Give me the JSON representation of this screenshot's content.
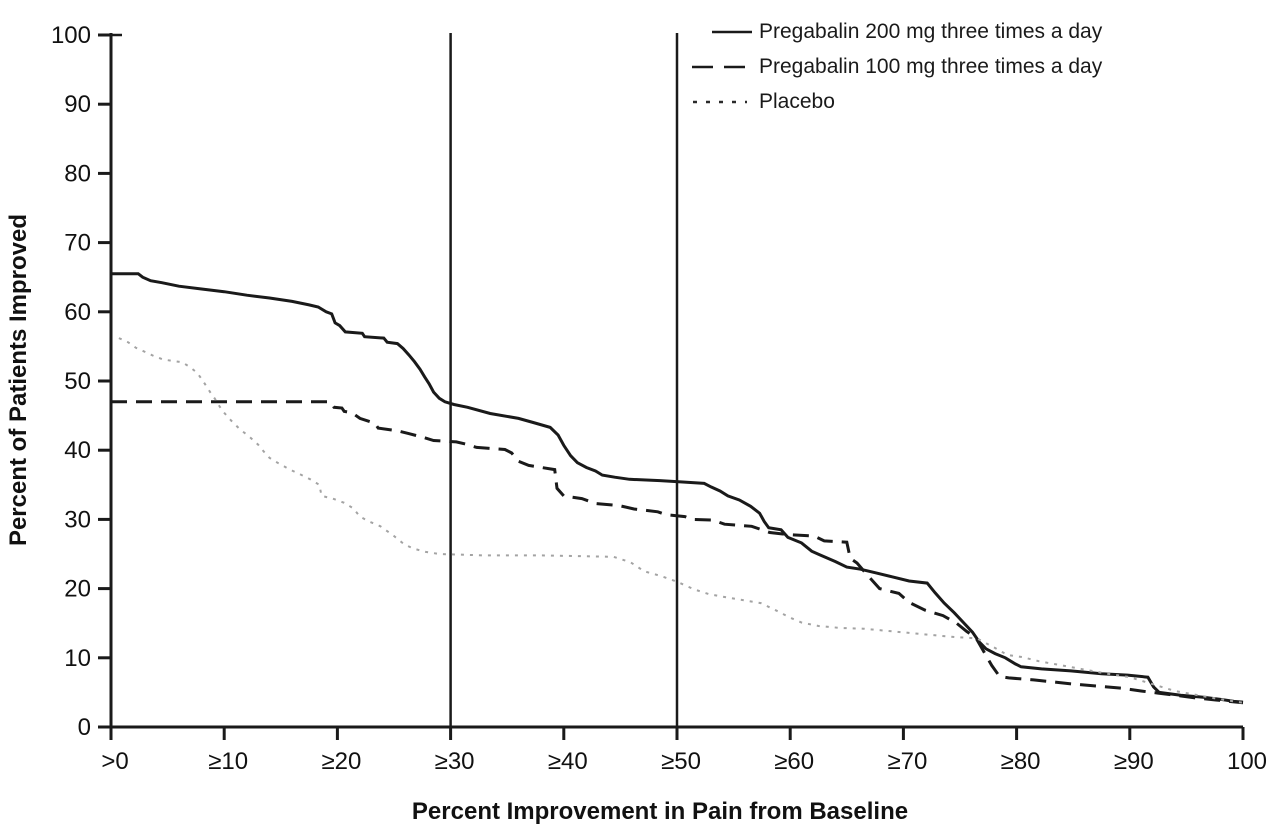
{
  "figure": {
    "background": "#ffffff",
    "axis_color": "#1a1a1a"
  },
  "chart_data": {
    "type": "line",
    "subtype": "step-survival-curves",
    "title": "",
    "xlabel": "Percent Improvement in Pain from Baseline",
    "ylabel": "Percent of Patients Improved",
    "xlim": [
      0,
      100
    ],
    "ylim": [
      0,
      100
    ],
    "grid": false,
    "legend_position": "top-right",
    "x_tick_values": [
      0,
      10,
      20,
      30,
      40,
      50,
      60,
      70,
      80,
      90,
      100
    ],
    "x_tick_labels": [
      ">0",
      "≥10",
      "≥20",
      "≥30",
      "≥40",
      "≥50",
      "≥60",
      "≥70",
      "≥80",
      "≥90",
      "100"
    ],
    "y_tick_values": [
      0,
      10,
      20,
      30,
      40,
      50,
      60,
      70,
      80,
      90,
      100
    ],
    "y_tick_labels": [
      "0",
      "10",
      "20",
      "30",
      "40",
      "50",
      "60",
      "70",
      "80",
      "90",
      "100"
    ],
    "reference_lines_x": [
      30,
      50
    ],
    "series": [
      {
        "name": "Pregabalin 200 mg three times a day",
        "style": "solid",
        "color": "#1a1a1a",
        "legend_color": "#1a1a1a",
        "points": [
          [
            0,
            65.5
          ],
          [
            2.4,
            65.5
          ],
          [
            2.8,
            65
          ],
          [
            3.5,
            64.5
          ],
          [
            4.5,
            64.2
          ],
          [
            6,
            63.7
          ],
          [
            8,
            63.3
          ],
          [
            10,
            62.9
          ],
          [
            12,
            62.4
          ],
          [
            14,
            62
          ],
          [
            16,
            61.5
          ],
          [
            17.5,
            61
          ],
          [
            18.3,
            60.7
          ],
          [
            19,
            60
          ],
          [
            19.5,
            59.7
          ],
          [
            19.8,
            58.4
          ],
          [
            20.2,
            58
          ],
          [
            20.7,
            57.1
          ],
          [
            22.2,
            56.9
          ],
          [
            22.4,
            56.4
          ],
          [
            24.1,
            56.2
          ],
          [
            24.4,
            55.6
          ],
          [
            25.3,
            55.4
          ],
          [
            25.8,
            54.7
          ],
          [
            26.3,
            53.8
          ],
          [
            26.8,
            52.8
          ],
          [
            27.3,
            51.7
          ],
          [
            27.7,
            50.6
          ],
          [
            28.1,
            49.6
          ],
          [
            28.5,
            48.4
          ],
          [
            29,
            47.5
          ],
          [
            29.5,
            47
          ],
          [
            30.3,
            46.6
          ],
          [
            31.5,
            46.2
          ],
          [
            33.5,
            45.3
          ],
          [
            36,
            44.6
          ],
          [
            37.3,
            44
          ],
          [
            38.8,
            43.3
          ],
          [
            39.5,
            42.2
          ],
          [
            40,
            40.7
          ],
          [
            40.6,
            39.2
          ],
          [
            41.2,
            38.2
          ],
          [
            42,
            37.5
          ],
          [
            42.8,
            37
          ],
          [
            43.4,
            36.4
          ],
          [
            44.5,
            36.1
          ],
          [
            45.8,
            35.8
          ],
          [
            48.5,
            35.6
          ],
          [
            50.5,
            35.4
          ],
          [
            52.4,
            35.2
          ],
          [
            53,
            34.7
          ],
          [
            53.8,
            34.1
          ],
          [
            54.5,
            33.4
          ],
          [
            55.5,
            32.8
          ],
          [
            56.5,
            31.9
          ],
          [
            57.3,
            30.9
          ],
          [
            57.7,
            29.7
          ],
          [
            58.1,
            28.8
          ],
          [
            59.2,
            28.5
          ],
          [
            59.8,
            27.4
          ],
          [
            61,
            26.6
          ],
          [
            61.9,
            25.4
          ],
          [
            62.6,
            24.9
          ],
          [
            64,
            23.9
          ],
          [
            65,
            23.1
          ],
          [
            66.2,
            22.8
          ],
          [
            67.5,
            22.3
          ],
          [
            69,
            21.7
          ],
          [
            70.5,
            21.1
          ],
          [
            72.1,
            20.8
          ],
          [
            72.8,
            19.4
          ],
          [
            73.6,
            17.9
          ],
          [
            74.5,
            16.5
          ],
          [
            75.3,
            15.1
          ],
          [
            76.1,
            13.7
          ],
          [
            76.7,
            12.3
          ],
          [
            77.3,
            11.3
          ],
          [
            78.1,
            10.6
          ],
          [
            79,
            10
          ],
          [
            79.9,
            9.1
          ],
          [
            80.4,
            8.7
          ],
          [
            82.2,
            8.4
          ],
          [
            84.8,
            8.1
          ],
          [
            87.5,
            7.7
          ],
          [
            89.8,
            7.5
          ],
          [
            91.6,
            7.2
          ],
          [
            92.1,
            5.8
          ],
          [
            92.6,
            5
          ],
          [
            94.5,
            4.6
          ],
          [
            96.5,
            4.3
          ],
          [
            98,
            4
          ],
          [
            99.2,
            3.7
          ],
          [
            100,
            3.6
          ]
        ]
      },
      {
        "name": "Pregabalin 100 mg three times a day",
        "style": "dashed",
        "color": "#1a1a1a",
        "legend_color": "#1a1a1a",
        "points": [
          [
            0,
            47
          ],
          [
            19.4,
            47
          ],
          [
            19.7,
            46.2
          ],
          [
            20.4,
            46.1
          ],
          [
            20.6,
            45.6
          ],
          [
            21.3,
            45.4
          ],
          [
            22,
            44.6
          ],
          [
            23.3,
            43.9
          ],
          [
            23.6,
            43.2
          ],
          [
            25.3,
            42.8
          ],
          [
            26.3,
            42.4
          ],
          [
            27.5,
            41.9
          ],
          [
            28.5,
            41.4
          ],
          [
            30.5,
            41.2
          ],
          [
            31.3,
            40.9
          ],
          [
            32.3,
            40.4
          ],
          [
            34.8,
            40.1
          ],
          [
            35.4,
            39.6
          ],
          [
            36,
            38.4
          ],
          [
            36.9,
            37.8
          ],
          [
            39.2,
            37.2
          ],
          [
            39.4,
            34.5
          ],
          [
            40,
            33.4
          ],
          [
            41.6,
            33
          ],
          [
            42.8,
            32.3
          ],
          [
            44.9,
            32
          ],
          [
            46.2,
            31.5
          ],
          [
            48.3,
            31.1
          ],
          [
            49,
            30.7
          ],
          [
            50.7,
            30.4
          ],
          [
            51.3,
            30
          ],
          [
            53.2,
            29.9
          ],
          [
            54.2,
            29.3
          ],
          [
            56.6,
            29
          ],
          [
            58.2,
            28.1
          ],
          [
            59.8,
            27.8
          ],
          [
            62.1,
            27.6
          ],
          [
            63,
            26.9
          ],
          [
            65,
            26.7
          ],
          [
            65.3,
            24.4
          ],
          [
            65.9,
            23.7
          ],
          [
            66.9,
            21.8
          ],
          [
            67.9,
            20
          ],
          [
            69.6,
            19.3
          ],
          [
            70.5,
            18
          ],
          [
            71.9,
            16.9
          ],
          [
            73.5,
            16.1
          ],
          [
            74.7,
            15
          ],
          [
            75.6,
            13.8
          ],
          [
            76.4,
            12.9
          ],
          [
            77.1,
            10.9
          ],
          [
            77.8,
            8.9
          ],
          [
            78.5,
            7.3
          ],
          [
            79.3,
            7.1
          ],
          [
            81.5,
            6.8
          ],
          [
            83.3,
            6.5
          ],
          [
            85,
            6.2
          ],
          [
            87.2,
            5.9
          ],
          [
            89.3,
            5.6
          ],
          [
            91,
            5.2
          ],
          [
            92.5,
            4.9
          ],
          [
            94,
            4.6
          ],
          [
            95.8,
            4.2
          ],
          [
            97.6,
            3.9
          ],
          [
            100,
            3.5
          ]
        ]
      },
      {
        "name": "Placebo",
        "style": "dotted",
        "color": "#a3a3a3",
        "legend_color": "#2a2a2a",
        "points": [
          [
            0.7,
            56.2
          ],
          [
            1.5,
            55.6
          ],
          [
            2.2,
            54.8
          ],
          [
            3,
            54.2
          ],
          [
            3.8,
            53.6
          ],
          [
            4.6,
            53.1
          ],
          [
            6.3,
            52.7
          ],
          [
            7,
            52
          ],
          [
            7.6,
            51.2
          ],
          [
            8,
            50.3
          ],
          [
            8.4,
            49.3
          ],
          [
            8.8,
            48.3
          ],
          [
            9.2,
            47.4
          ],
          [
            9.6,
            46.3
          ],
          [
            10,
            45.4
          ],
          [
            10.6,
            44.3
          ],
          [
            11.4,
            43
          ],
          [
            12.2,
            42
          ],
          [
            13,
            40.8
          ],
          [
            13.5,
            39.8
          ],
          [
            14,
            38.9
          ],
          [
            14.8,
            38.1
          ],
          [
            15.8,
            37.2
          ],
          [
            16.6,
            36.6
          ],
          [
            17.6,
            35.8
          ],
          [
            18.4,
            35
          ],
          [
            18.6,
            33.4
          ],
          [
            19.6,
            33
          ],
          [
            20.6,
            32.4
          ],
          [
            21.4,
            31.6
          ],
          [
            22,
            30.4
          ],
          [
            22.8,
            29.7
          ],
          [
            23.8,
            29
          ],
          [
            25,
            27.6
          ],
          [
            25.9,
            26.4
          ],
          [
            26.7,
            25.8
          ],
          [
            27.8,
            25.3
          ],
          [
            29,
            25
          ],
          [
            33,
            24.8
          ],
          [
            38,
            24.8
          ],
          [
            44.4,
            24.6
          ],
          [
            45.9,
            23.8
          ],
          [
            47.1,
            22.5
          ],
          [
            48.6,
            21.8
          ],
          [
            50,
            21
          ],
          [
            51.5,
            19.9
          ],
          [
            52.8,
            19.2
          ],
          [
            54.5,
            18.7
          ],
          [
            57.4,
            17.9
          ],
          [
            58.8,
            16.8
          ],
          [
            60,
            15.8
          ],
          [
            61,
            15.1
          ],
          [
            62.5,
            14.6
          ],
          [
            64.5,
            14.3
          ],
          [
            66.5,
            14.2
          ],
          [
            68.5,
            13.9
          ],
          [
            70.5,
            13.6
          ],
          [
            72.5,
            13.3
          ],
          [
            74.5,
            13
          ],
          [
            76.5,
            12.8
          ],
          [
            78,
            11.5
          ],
          [
            79.2,
            10.4
          ],
          [
            80.5,
            10.1
          ],
          [
            82,
            9.5
          ],
          [
            84,
            8.9
          ],
          [
            86,
            8.3
          ],
          [
            88,
            7.7
          ],
          [
            90,
            7.2
          ],
          [
            92,
            6.2
          ],
          [
            94,
            5.2
          ],
          [
            96,
            4.6
          ],
          [
            98,
            4
          ],
          [
            100,
            3.5
          ]
        ]
      }
    ]
  }
}
